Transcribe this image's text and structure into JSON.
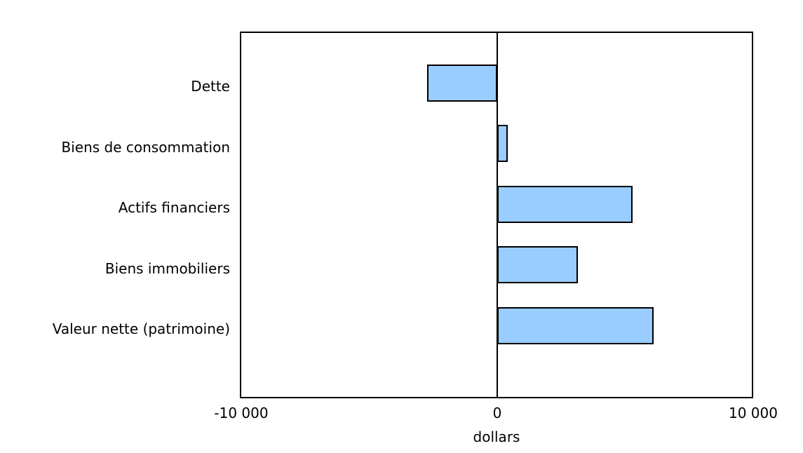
{
  "chart_data": {
    "type": "bar",
    "orientation": "horizontal",
    "categories": [
      "Dette",
      "Biens de consommation",
      "Actifs financiers",
      "Biens immobiliers",
      "Valeur nette (patrimoine)"
    ],
    "values": [
      -2750,
      400,
      5300,
      3150,
      6100
    ],
    "xlabel": "dollars",
    "xlim": [
      -10000,
      10000
    ],
    "xticks": [
      {
        "value": -10000,
        "label": "-10 000"
      },
      {
        "value": 0,
        "label": "0"
      },
      {
        "value": 10000,
        "label": "10 000"
      }
    ],
    "grid": false,
    "legend": false,
    "zero_axis_line": true,
    "colors": {
      "bar_fill": "#99CCFF",
      "bar_edge": "#000000",
      "axis": "#000000",
      "text": "#000000",
      "background": "#FFFFFF"
    }
  }
}
